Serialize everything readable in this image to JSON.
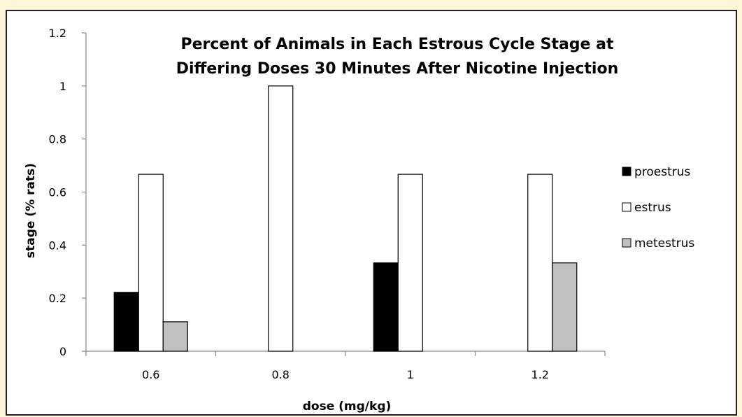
{
  "chart_data": {
    "type": "bar",
    "title_lines": [
      "Percent of Animals in Each Estrous Cycle Stage at",
      "Differing Doses 30 Minutes After Nicotine Injection"
    ],
    "xlabel": "dose (mg/kg)",
    "ylabel": "stage (% rats)",
    "categories": [
      "0.6",
      "0.8",
      "1",
      "1.2"
    ],
    "ylim": [
      0,
      1.2
    ],
    "yticks": [
      0,
      0.2,
      0.4,
      0.6,
      0.8,
      1,
      1.2
    ],
    "ytick_labels": [
      "0",
      "0.2",
      "0.4",
      "0.6",
      "0.8",
      "1",
      "1.2"
    ],
    "grid": false,
    "legend_position": "right",
    "series": [
      {
        "name": "proestrus",
        "values": [
          0.222,
          0,
          0.333,
          0
        ],
        "color": "#000000"
      },
      {
        "name": "estrus",
        "values": [
          0.667,
          1.0,
          0.667,
          0.667
        ],
        "color": "#ffffff"
      },
      {
        "name": "metestrus",
        "values": [
          0.111,
          0,
          0,
          0.333
        ],
        "color": "#c0c0c0"
      }
    ]
  }
}
